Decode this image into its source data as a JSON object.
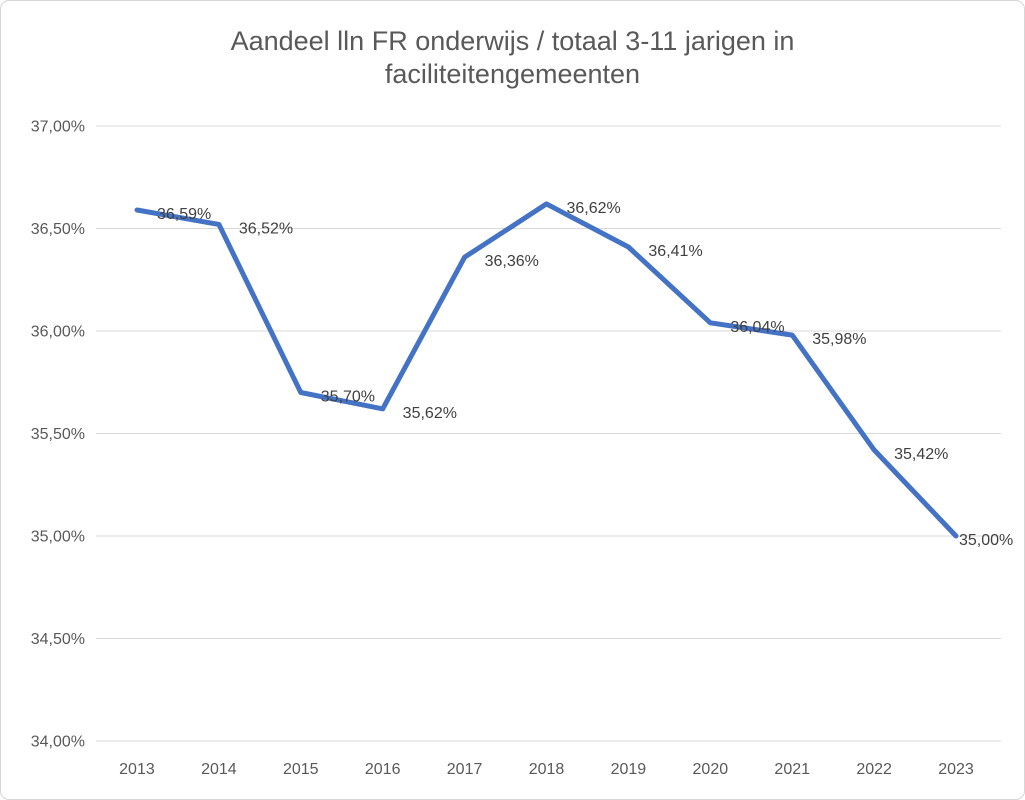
{
  "chart_data": {
    "type": "line",
    "title": "Aandeel lln FR onderwijs / totaal 3-11 jarigen in faciliteitengemeenten",
    "title_lines": [
      "Aandeel lln FR onderwijs / totaal 3-11 jarigen in",
      "faciliteitengemeenten"
    ],
    "categories": [
      "2013",
      "2014",
      "2015",
      "2016",
      "2017",
      "2018",
      "2019",
      "2020",
      "2021",
      "2022",
      "2023"
    ],
    "values": [
      36.59,
      36.52,
      35.7,
      35.62,
      36.36,
      36.62,
      36.41,
      36.04,
      35.98,
      35.42,
      35.0
    ],
    "data_labels": [
      "36,59%",
      "36,52%",
      "35,70%",
      "35,62%",
      "36,36%",
      "36,62%",
      "36,41%",
      "36,04%",
      "35,98%",
      "35,42%",
      "35,00%"
    ],
    "xlabel": "",
    "ylabel": "",
    "y_axis": {
      "min": 34.0,
      "max": 37.0,
      "step": 0.5,
      "tick_labels": [
        "34,00%",
        "34,50%",
        "35,00%",
        "35,50%",
        "36,00%",
        "36,50%",
        "37,00%"
      ]
    },
    "grid": true,
    "legend": "none",
    "colors": {
      "line": "#4472c4",
      "gridline": "#d9d9d9",
      "axis_text": "#595959",
      "data_label_text": "#404040",
      "title_text": "#595959",
      "frame_border": "#d6d6d6"
    }
  }
}
